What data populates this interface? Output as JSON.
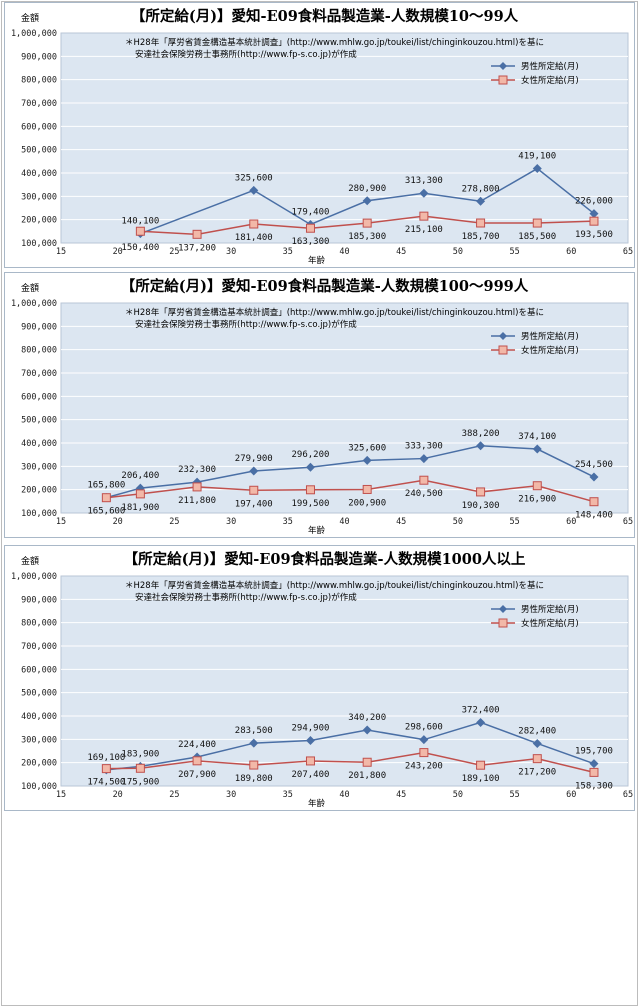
{
  "chart_data": [
    {
      "type": "line",
      "title": "【所定給(月)】愛知-E09食料品製造業-人数規模10～99人",
      "ylabel": "金額",
      "xlabel": "年齢",
      "xlim": [
        15,
        65
      ],
      "ylim": [
        100000,
        1000000
      ],
      "x_ticks": [
        "15",
        "20",
        "25",
        "30",
        "35",
        "40",
        "45",
        "50",
        "55",
        "60",
        "65"
      ],
      "y_ticks": [
        "100,000",
        "200,000",
        "300,000",
        "400,000",
        "500,000",
        "600,000",
        "700,000",
        "800,000",
        "900,000",
        "1,000,000"
      ],
      "note_line1": "＊H28年「厚労省賃金構造基本統計調査」(http://www.mhlw.go.jp/toukei/list/chinginkouzou.html)を基に",
      "note_line2": "安達社会保険労務士事務所(http://www.fp-s.co.jp)が作成",
      "legend_position": "top-right",
      "grid": true,
      "series": [
        {
          "name": "男性所定給(月)",
          "color": "#4a6fa5",
          "marker": "diamond",
          "x": [
            22,
            32,
            37,
            42,
            47,
            52,
            57,
            62
          ],
          "values": [
            140100,
            325600,
            179400,
            280900,
            313300,
            278800,
            419100,
            226000
          ],
          "labels": [
            "140,100",
            "325,600",
            "179,400",
            "280,900",
            "313,300",
            "278,800",
            "419,100",
            "226,000"
          ]
        },
        {
          "name": "女性所定給(月)",
          "color": "#c0504d",
          "marker": "square",
          "x": [
            22,
            27,
            32,
            37,
            42,
            47,
            52,
            57,
            62
          ],
          "values": [
            150400,
            137200,
            181400,
            163300,
            185300,
            215100,
            185700,
            185500,
            193500
          ],
          "labels": [
            "150,400",
            "137,200",
            "181,400",
            "163,300",
            "185,300",
            "215,100",
            "185,700",
            "185,500",
            "193,500"
          ]
        }
      ]
    },
    {
      "type": "line",
      "title": "【所定給(月)】愛知-E09食料品製造業-人数規模100～999人",
      "ylabel": "金額",
      "xlabel": "年齢",
      "xlim": [
        15,
        65
      ],
      "ylim": [
        100000,
        1000000
      ],
      "x_ticks": [
        "15",
        "20",
        "25",
        "30",
        "35",
        "40",
        "45",
        "50",
        "55",
        "60",
        "65"
      ],
      "y_ticks": [
        "100,000",
        "200,000",
        "300,000",
        "400,000",
        "500,000",
        "600,000",
        "700,000",
        "800,000",
        "900,000",
        "1,000,000"
      ],
      "note_line1": "＊H28年「厚労省賃金構造基本統計調査」(http://www.mhlw.go.jp/toukei/list/chinginkouzou.html)を基に",
      "note_line2": "安達社会保険労務士事務所(http://www.fp-s.co.jp)が作成",
      "legend_position": "top-right",
      "grid": true,
      "series": [
        {
          "name": "男性所定給(月)",
          "color": "#4a6fa5",
          "marker": "diamond",
          "x": [
            19,
            22,
            27,
            32,
            37,
            42,
            47,
            52,
            57,
            62
          ],
          "values": [
            165800,
            206400,
            232300,
            279900,
            296200,
            325600,
            333300,
            388200,
            374100,
            254500
          ],
          "labels": [
            "165,800",
            "206,400",
            "232,300",
            "279,900",
            "296,200",
            "325,600",
            "333,300",
            "388,200",
            "374,100",
            "254,500"
          ]
        },
        {
          "name": "女性所定給(月)",
          "color": "#c0504d",
          "marker": "square",
          "x": [
            19,
            22,
            27,
            32,
            37,
            42,
            47,
            52,
            57,
            62
          ],
          "values": [
            165600,
            181900,
            211800,
            197400,
            199500,
            200900,
            240500,
            190300,
            216900,
            148400
          ],
          "labels": [
            "165,600",
            "181,900",
            "211,800",
            "197,400",
            "199,500",
            "200,900",
            "240,500",
            "190,300",
            "216,900",
            "148,400"
          ]
        }
      ]
    },
    {
      "type": "line",
      "title": "【所定給(月)】愛知-E09食料品製造業-人数規模1000人以上",
      "ylabel": "金額",
      "xlabel": "年齢",
      "xlim": [
        15,
        65
      ],
      "ylim": [
        100000,
        1000000
      ],
      "x_ticks": [
        "15",
        "20",
        "25",
        "30",
        "35",
        "40",
        "45",
        "50",
        "55",
        "60",
        "65"
      ],
      "y_ticks": [
        "100,000",
        "200,000",
        "300,000",
        "400,000",
        "500,000",
        "600,000",
        "700,000",
        "800,000",
        "900,000",
        "1,000,000"
      ],
      "note_line1": "＊H28年「厚労省賃金構造基本統計調査」(http://www.mhlw.go.jp/toukei/list/chinginkouzou.html)を基に",
      "note_line2": "安達社会保険労務士事務所(http://www.fp-s.co.jp)が作成",
      "legend_position": "top-right",
      "grid": true,
      "series": [
        {
          "name": "男性所定給(月)",
          "color": "#4a6fa5",
          "marker": "diamond",
          "x": [
            19,
            22,
            27,
            32,
            37,
            42,
            47,
            52,
            57,
            62
          ],
          "values": [
            169100,
            183900,
            224400,
            283500,
            294900,
            340200,
            298600,
            372400,
            282400,
            195700
          ],
          "labels": [
            "169,100",
            "183,900",
            "224,400",
            "283,500",
            "294,900",
            "340,200",
            "298,600",
            "372,400",
            "282,400",
            "195,700"
          ]
        },
        {
          "name": "女性所定給(月)",
          "color": "#c0504d",
          "marker": "square",
          "x": [
            19,
            22,
            27,
            32,
            37,
            42,
            47,
            52,
            57,
            62
          ],
          "values": [
            174500,
            175900,
            207900,
            189800,
            207400,
            201800,
            243200,
            189100,
            217200,
            158300
          ],
          "labels": [
            "174,500",
            "175,900",
            "207,900",
            "189,800",
            "207,400",
            "201,800",
            "243,200",
            "189,100",
            "217,200",
            "158,300"
          ]
        }
      ]
    }
  ]
}
